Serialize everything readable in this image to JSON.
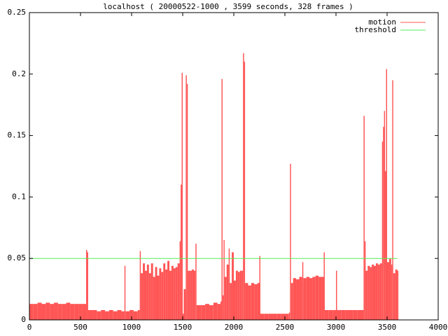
{
  "chart_data": {
    "type": "impulse",
    "title": "localhost ( 20000522-1000 , 3599 seconds, 328 frames )",
    "xlim": [
      0,
      4000
    ],
    "xticks": [
      0,
      500,
      1000,
      1500,
      2000,
      2500,
      3000,
      3500,
      4000
    ],
    "ylim": [
      0,
      0.25
    ],
    "yticks": [
      0,
      0.05,
      0.1,
      0.15,
      0.2,
      0.25
    ],
    "legend": "top-right",
    "series": [
      {
        "name": "motion",
        "color": "#ff5555",
        "style": "impulses",
        "x": [
          0,
          40,
          80,
          120,
          160,
          200,
          240,
          280,
          320,
          360,
          400,
          440,
          480,
          520,
          555,
          565,
          575,
          620,
          660,
          700,
          740,
          780,
          820,
          860,
          900,
          930,
          940,
          980,
          1020,
          1060,
          1080,
          1090,
          1110,
          1130,
          1150,
          1170,
          1190,
          1210,
          1230,
          1250,
          1270,
          1290,
          1310,
          1330,
          1350,
          1370,
          1390,
          1410,
          1430,
          1450,
          1470,
          1480,
          1490,
          1500,
          1510,
          1530,
          1540,
          1550,
          1570,
          1590,
          1610,
          1625,
          1635,
          1680,
          1720,
          1760,
          1800,
          1840,
          1870,
          1880,
          1890,
          1900,
          1910,
          1930,
          1950,
          1960,
          1980,
          2000,
          2020,
          2040,
          2060,
          2080,
          2090,
          2100,
          2110,
          2140,
          2170,
          2200,
          2230,
          2250,
          2260,
          2300,
          2340,
          2380,
          2420,
          2460,
          2500,
          2540,
          2550,
          2560,
          2580,
          2610,
          2640,
          2670,
          2680,
          2710,
          2740,
          2770,
          2800,
          2830,
          2860,
          2880,
          2890,
          2930,
          2970,
          3000,
          3010,
          3050,
          3090,
          3130,
          3170,
          3210,
          3250,
          3270,
          3280,
          3290,
          3310,
          3330,
          3350,
          3370,
          3390,
          3410,
          3430,
          3450,
          3460,
          3470,
          3480,
          3490,
          3500,
          3520,
          3540,
          3550,
          3560,
          3580,
          3600
        ],
        "values": [
          0.013,
          0.013,
          0.014,
          0.013,
          0.014,
          0.013,
          0.014,
          0.013,
          0.013,
          0.014,
          0.013,
          0.013,
          0.013,
          0.013,
          0.057,
          0.055,
          0.008,
          0.008,
          0.007,
          0.008,
          0.007,
          0.008,
          0.007,
          0.008,
          0.007,
          0.044,
          0.007,
          0.008,
          0.007,
          0.008,
          0.056,
          0.038,
          0.046,
          0.04,
          0.045,
          0.038,
          0.046,
          0.035,
          0.043,
          0.036,
          0.042,
          0.039,
          0.046,
          0.041,
          0.048,
          0.04,
          0.044,
          0.042,
          0.043,
          0.046,
          0.064,
          0.11,
          0.201,
          0.005,
          0.025,
          0.199,
          0.192,
          0.04,
          0.04,
          0.041,
          0.04,
          0.062,
          0.012,
          0.012,
          0.013,
          0.012,
          0.014,
          0.013,
          0.015,
          0.196,
          0.02,
          0.065,
          0.035,
          0.045,
          0.058,
          0.03,
          0.055,
          0.032,
          0.04,
          0.039,
          0.04,
          0.04,
          0.217,
          0.21,
          0.03,
          0.028,
          0.03,
          0.029,
          0.03,
          0.052,
          0.005,
          0.005,
          0.005,
          0.005,
          0.005,
          0.005,
          0.005,
          0.006,
          0.127,
          0.03,
          0.034,
          0.033,
          0.035,
          0.047,
          0.034,
          0.035,
          0.034,
          0.035,
          0.036,
          0.035,
          0.035,
          0.055,
          0.008,
          0.008,
          0.008,
          0.04,
          0.008,
          0.008,
          0.008,
          0.008,
          0.008,
          0.008,
          0.008,
          0.166,
          0.064,
          0.04,
          0.044,
          0.043,
          0.045,
          0.044,
          0.046,
          0.045,
          0.046,
          0.145,
          0.157,
          0.17,
          0.121,
          0.204,
          0.047,
          0.05,
          0.045,
          0.195,
          0.038,
          0.041,
          0.04
        ]
      },
      {
        "name": "threshold",
        "color": "#55ee55",
        "style": "lines",
        "x": [
          0,
          3600
        ],
        "values": [
          0.05,
          0.05
        ]
      }
    ]
  }
}
